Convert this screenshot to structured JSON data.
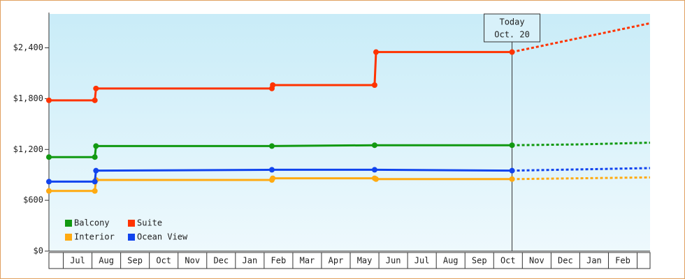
{
  "chart_data": {
    "type": "line",
    "xlim": [
      -0.5,
      20.45
    ],
    "xticks": [
      {
        "value": 0.5,
        "label": "Jul"
      },
      {
        "value": 1.5,
        "label": "Aug"
      },
      {
        "value": 2.5,
        "label": "Sep"
      },
      {
        "value": 3.5,
        "label": "Oct"
      },
      {
        "value": 4.5,
        "label": "Nov"
      },
      {
        "value": 5.5,
        "label": "Dec"
      },
      {
        "value": 6.5,
        "label": "Jan"
      },
      {
        "value": 7.5,
        "label": "Feb"
      },
      {
        "value": 8.5,
        "label": "Mar"
      },
      {
        "value": 9.5,
        "label": "Apr"
      },
      {
        "value": 10.5,
        "label": "May"
      },
      {
        "value": 11.5,
        "label": "Jun"
      },
      {
        "value": 12.5,
        "label": "Jul"
      },
      {
        "value": 13.5,
        "label": "Aug"
      },
      {
        "value": 14.5,
        "label": "Sep"
      },
      {
        "value": 15.5,
        "label": "Oct"
      },
      {
        "value": 16.5,
        "label": "Nov"
      },
      {
        "value": 17.5,
        "label": "Dec"
      },
      {
        "value": 18.5,
        "label": "Jan"
      },
      {
        "value": 19.5,
        "label": "Feb"
      }
    ],
    "ylim": [
      0,
      2800
    ],
    "yticks": [
      {
        "value": 0,
        "label": "$0"
      },
      {
        "value": 600,
        "label": "$600"
      },
      {
        "value": 1200,
        "label": "$1,200"
      },
      {
        "value": 1800,
        "label": "$1,800"
      },
      {
        "value": 2400,
        "label": "$2,400"
      }
    ],
    "today": {
      "x": 15.64,
      "label": "Today",
      "date": "Oct. 20"
    },
    "series": [
      {
        "name": "Balcony",
        "color": "#119911",
        "x": [
          -0.5,
          1.1,
          1.14,
          7.27,
          10.85,
          15.64
        ],
        "values": [
          1110,
          1110,
          1240,
          1240,
          1250,
          1250
        ],
        "forecast_x": [
          15.64,
          18,
          20.45
        ],
        "forecast_values": [
          1250,
          1260,
          1280
        ]
      },
      {
        "name": "Suite",
        "color": "#ff3300",
        "x": [
          -0.5,
          1.1,
          1.14,
          7.27,
          7.3,
          10.85,
          10.9,
          15.64
        ],
        "values": [
          1780,
          1780,
          1920,
          1920,
          1960,
          1960,
          2350,
          2350
        ],
        "forecast_x": [
          15.64,
          20.45
        ],
        "forecast_values": [
          2350,
          2690
        ]
      },
      {
        "name": "Interior",
        "color": "#ffaa11",
        "x": [
          -0.5,
          1.1,
          1.14,
          7.27,
          7.3,
          10.85,
          10.9,
          15.64
        ],
        "values": [
          710,
          710,
          840,
          840,
          860,
          860,
          850,
          850
        ],
        "forecast_x": [
          15.64,
          20.45
        ],
        "forecast_values": [
          850,
          870
        ]
      },
      {
        "name": "Ocean View",
        "color": "#1144ee",
        "x": [
          -0.5,
          1.1,
          1.14,
          7.27,
          10.85,
          15.64
        ],
        "values": [
          820,
          820,
          950,
          960,
          960,
          950
        ],
        "forecast_x": [
          15.64,
          20.45
        ],
        "forecast_values": [
          950,
          980
        ]
      }
    ]
  }
}
